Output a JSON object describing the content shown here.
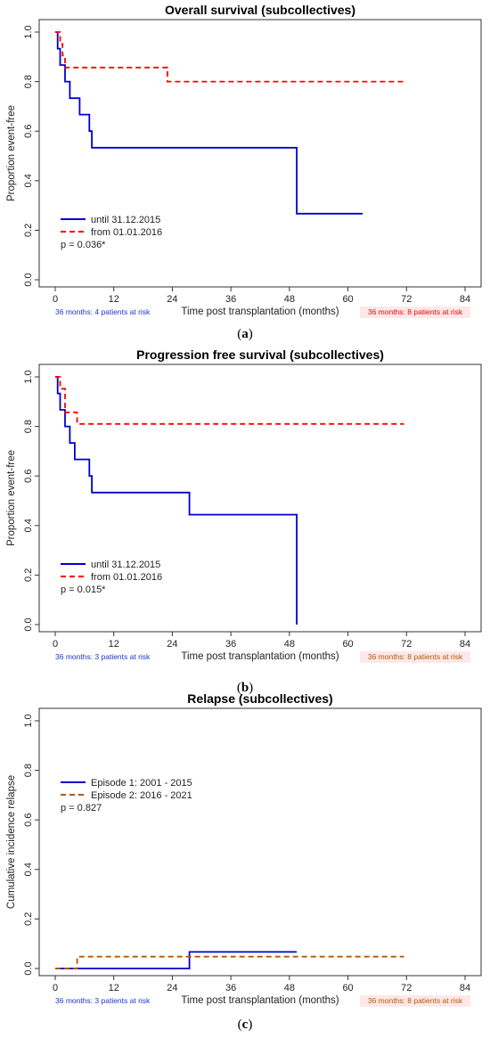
{
  "chart_data": [
    {
      "type": "line",
      "subtype": "kaplan-meier step",
      "title": "Overall survival (subcollectives)",
      "xlabel": "Time post transplantation (months)",
      "ylabel": "Proportion event-free",
      "xlim": [
        0,
        84
      ],
      "ylim": [
        0,
        1
      ],
      "xticks": [
        "0",
        "12",
        "24",
        "36",
        "48",
        "60",
        "72",
        "84"
      ],
      "yticks": [
        "0.0",
        "0.2",
        "0.4",
        "0.6",
        "0.8",
        "1.0"
      ],
      "legend_position": "bottom-left",
      "p_value": "p = 0.036*",
      "risk_left": "36 months: 4 patients at risk",
      "risk_right": "36 months: 8 patients at risk",
      "caption": "a",
      "series": [
        {
          "name": "until 31.12.2015",
          "color": "#0000cc",
          "dash": "solid",
          "x": [
            0,
            0.5,
            1,
            2,
            3,
            5,
            7,
            7.5,
            49.5,
            63
          ],
          "y": [
            1.0,
            0.933,
            0.867,
            0.8,
            0.733,
            0.667,
            0.6,
            0.533,
            0.267,
            0.267
          ]
        },
        {
          "name": "from 01.01.2016",
          "color": "#ff0000",
          "dash": "dashed",
          "x": [
            0,
            1,
            1.5,
            2,
            23,
            71.5
          ],
          "y": [
            1.0,
            0.952,
            0.905,
            0.857,
            0.8,
            0.8
          ]
        }
      ]
    },
    {
      "type": "line",
      "subtype": "kaplan-meier step",
      "title": "Progression free survival (subcollectives)",
      "xlabel": "Time post transplantation (months)",
      "ylabel": "Proportion event-free",
      "xlim": [
        0,
        84
      ],
      "ylim": [
        0,
        1
      ],
      "xticks": [
        "0",
        "12",
        "24",
        "36",
        "48",
        "60",
        "72",
        "84"
      ],
      "yticks": [
        "0.0",
        "0.2",
        "0.4",
        "0.6",
        "0.8",
        "1.0"
      ],
      "legend_position": "bottom-left",
      "p_value": "p = 0.015*",
      "risk_left": "36 months: 3 patients at risk",
      "risk_right": "36 months: 8 patients at risk",
      "caption": "b",
      "series": [
        {
          "name": "until 31.12.2015",
          "color": "#0000cc",
          "dash": "solid",
          "x": [
            0,
            0.5,
            1,
            2,
            3,
            4,
            7,
            7.5,
            27.5,
            49.5,
            49.5
          ],
          "y": [
            1.0,
            0.933,
            0.867,
            0.8,
            0.733,
            0.667,
            0.6,
            0.533,
            0.444,
            0.444,
            0.0
          ]
        },
        {
          "name": "from 01.01.2016",
          "color": "#ff0000",
          "dash": "dashed",
          "x": [
            0,
            1,
            2,
            4.5,
            71.5
          ],
          "y": [
            1.0,
            0.952,
            0.857,
            0.81,
            0.81
          ]
        }
      ]
    },
    {
      "type": "line",
      "subtype": "cumulative incidence step",
      "title": "Relapse (subcollectives)",
      "xlabel": "Time post transplantation (months)",
      "ylabel": "Cumulative incidence relapse",
      "xlim": [
        0,
        84
      ],
      "ylim": [
        0,
        1
      ],
      "xticks": [
        "0",
        "12",
        "24",
        "36",
        "48",
        "60",
        "72",
        "84"
      ],
      "yticks": [
        "0.0",
        "0.2",
        "0.4",
        "0.6",
        "0.8",
        "1.0"
      ],
      "legend_position": "top-left",
      "p_value": "p = 0.827",
      "risk_left": "36 months: 3 patients at risk",
      "risk_right": "36 months: 8 patients at risk",
      "caption": "c",
      "series": [
        {
          "name": "Episode 1: 2001 - 2015",
          "color": "#0000cc",
          "dash": "solid",
          "x": [
            0,
            27.5,
            49.5
          ],
          "y": [
            0.0,
            0.067,
            0.067
          ]
        },
        {
          "name": "Episode 2: 2016 - 2021",
          "color": "#b35900",
          "dash": "dashed",
          "x": [
            0,
            4.5,
            71.5
          ],
          "y": [
            0.0,
            0.048,
            0.048
          ]
        }
      ]
    }
  ],
  "captions": [
    "a",
    "b",
    "c"
  ]
}
